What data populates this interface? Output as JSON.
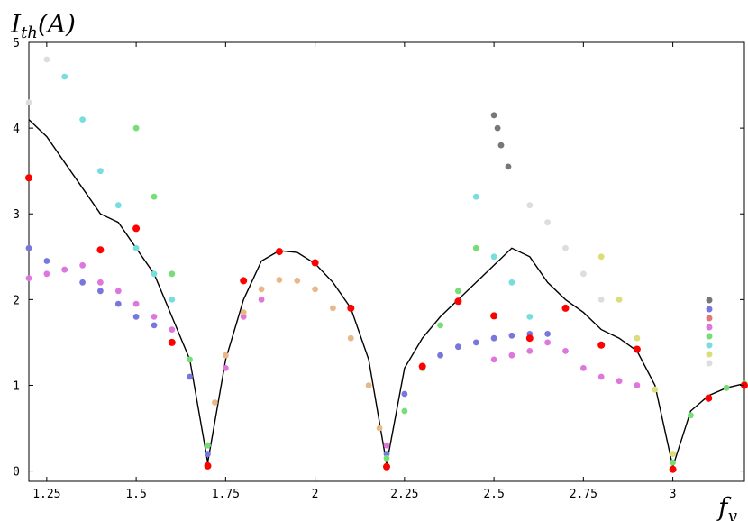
{
  "chart_data": {
    "type": "scatter",
    "title": "",
    "xlabel": "f",
    "xlabel_sub": "y",
    "ylabel": "I",
    "ylabel_sub": "th",
    "ylabel_unit": "(A)",
    "xlim": [
      1.2,
      3.2
    ],
    "ylim": [
      -0.12,
      5.0
    ],
    "x_ticks": [
      1.25,
      1.5,
      1.75,
      2.0,
      2.25,
      2.5,
      2.75,
      3.0
    ],
    "x_tick_labels": [
      "1.25",
      "1.5",
      "1.75",
      "2",
      "2.25",
      "2.5",
      "2.75",
      "3"
    ],
    "y_ticks": [
      0,
      1,
      2,
      3,
      4,
      5
    ],
    "y_tick_labels": [
      "0",
      "1",
      "2",
      "3",
      "4",
      "5"
    ],
    "legend_placement": "right",
    "legend_colors": [
      "#777777",
      "#7777dd",
      "#e07878",
      "#dd77dd",
      "#77dd77",
      "#77dddd",
      "#dddd77",
      "#dddddd"
    ],
    "red_markers": {
      "x": [
        1.2,
        1.4,
        1.5,
        1.6,
        1.7,
        1.8,
        1.9,
        2.0,
        2.1,
        2.2,
        2.3,
        2.4,
        2.5,
        2.6,
        2.7,
        2.8,
        2.9,
        3.0,
        3.1,
        3.2
      ],
      "y": [
        3.42,
        2.58,
        2.83,
        1.5,
        0.06,
        2.22,
        2.56,
        2.43,
        1.9,
        0.05,
        1.22,
        1.98,
        1.81,
        1.55,
        1.9,
        1.47,
        1.42,
        0.02,
        0.85,
        1.0
      ]
    },
    "series": [
      {
        "color": "#000000",
        "style": "line",
        "x": [
          1.2,
          1.25,
          1.3,
          1.35,
          1.4,
          1.45,
          1.5,
          1.55,
          1.6,
          1.65,
          1.7,
          1.75,
          1.8,
          1.85,
          1.9,
          1.95,
          2.0,
          2.05,
          2.1,
          2.15,
          2.2,
          2.25,
          2.3,
          2.35,
          2.4,
          2.45,
          2.5,
          2.55,
          2.6,
          2.65,
          2.7,
          2.75,
          2.8,
          2.85,
          2.9,
          2.95,
          3.0,
          3.05,
          3.1,
          3.15,
          3.2
        ],
        "y": [
          4.1,
          3.9,
          3.6,
          3.3,
          3.0,
          2.9,
          2.6,
          2.3,
          1.8,
          1.3,
          0.1,
          1.3,
          2.0,
          2.45,
          2.57,
          2.55,
          2.42,
          2.2,
          1.9,
          1.3,
          0.08,
          1.2,
          1.55,
          1.8,
          2.0,
          2.2,
          2.4,
          2.6,
          2.5,
          2.2,
          2.0,
          1.85,
          1.65,
          1.55,
          1.4,
          1.0,
          0.05,
          0.7,
          0.88,
          0.97,
          1.02
        ]
      },
      {
        "color": "#7777dd",
        "style": "points",
        "x": [
          1.2,
          1.25,
          1.3,
          1.35,
          1.4,
          1.45,
          1.5,
          1.55,
          1.6,
          1.65,
          1.7,
          2.2,
          2.25,
          2.3,
          2.35,
          2.4,
          2.45,
          2.5,
          2.55,
          2.6,
          2.65
        ],
        "y": [
          2.6,
          2.45,
          2.35,
          2.2,
          2.1,
          1.95,
          1.8,
          1.7,
          1.5,
          1.1,
          0.2,
          0.2,
          0.9,
          1.2,
          1.35,
          1.45,
          1.5,
          1.55,
          1.58,
          1.6,
          1.6
        ]
      },
      {
        "color": "#dd77dd",
        "style": "points",
        "x": [
          1.2,
          1.25,
          1.3,
          1.35,
          1.4,
          1.45,
          1.5,
          1.55,
          1.6,
          1.7,
          1.75,
          1.8,
          1.85,
          2.2,
          2.5,
          2.55,
          2.6,
          2.65,
          2.7,
          2.75,
          2.8,
          2.85,
          2.9
        ],
        "y": [
          2.25,
          2.3,
          2.35,
          2.4,
          2.2,
          2.1,
          1.95,
          1.8,
          1.65,
          0.3,
          1.2,
          1.8,
          2.0,
          0.3,
          1.3,
          1.35,
          1.4,
          1.5,
          1.4,
          1.2,
          1.1,
          1.05,
          1.0
        ]
      },
      {
        "color": "#77dd77",
        "style": "points",
        "x": [
          1.5,
          1.55,
          1.6,
          1.65,
          1.7,
          2.2,
          2.25,
          2.3,
          2.35,
          2.4,
          2.45,
          3.0,
          3.05,
          3.1,
          3.15,
          3.2
        ],
        "y": [
          4.0,
          3.2,
          2.3,
          1.3,
          0.3,
          0.15,
          0.7,
          1.2,
          1.7,
          2.1,
          2.6,
          0.1,
          0.65,
          0.85,
          0.97,
          1.02
        ]
      },
      {
        "color": "#77dddd",
        "style": "points",
        "x": [
          1.3,
          1.35,
          1.4,
          1.45,
          1.5,
          1.55,
          1.6,
          2.45,
          2.5,
          2.55,
          2.6
        ],
        "y": [
          4.6,
          4.1,
          3.5,
          3.1,
          2.6,
          2.3,
          2.0,
          3.2,
          2.5,
          2.2,
          1.8
        ]
      },
      {
        "color": "#e8b888",
        "style": "points",
        "x": [
          1.72,
          1.75,
          1.8,
          1.85,
          1.9,
          1.95,
          2.0,
          2.05,
          2.1,
          2.15,
          2.18
        ],
        "y": [
          0.8,
          1.35,
          1.85,
          2.12,
          2.23,
          2.22,
          2.12,
          1.9,
          1.55,
          1.0,
          0.5
        ]
      },
      {
        "color": "#dddd77",
        "style": "points",
        "x": [
          2.8,
          2.85,
          2.9,
          2.95,
          3.0
        ],
        "y": [
          2.5,
          2.0,
          1.55,
          0.95,
          0.2
        ]
      },
      {
        "color": "#dddddd",
        "style": "points",
        "x": [
          1.2,
          1.25,
          2.6,
          2.65,
          2.7,
          2.75,
          2.8
        ],
        "y": [
          4.3,
          4.8,
          3.1,
          2.9,
          2.6,
          2.3,
          2.0
        ]
      },
      {
        "color": "#777777",
        "style": "points",
        "x": [
          2.5,
          2.51,
          2.52,
          2.54
        ],
        "y": [
          4.15,
          4.0,
          3.8,
          3.55
        ]
      }
    ]
  }
}
